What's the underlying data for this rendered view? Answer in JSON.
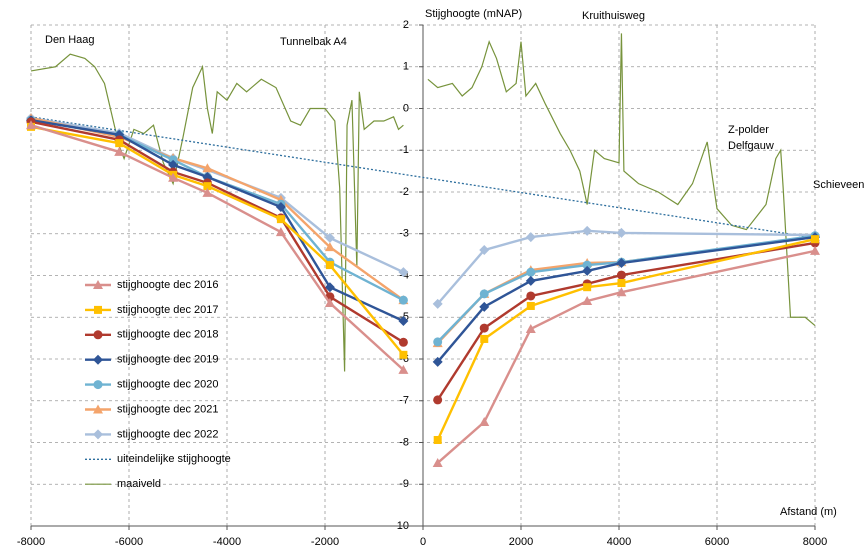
{
  "chart_data": {
    "type": "line",
    "annotations": [
      "Den Haag",
      "Tunnelbak A4",
      "Stijghoogte (mNAP)",
      "Kruithuisweg",
      "Z-polder",
      "Delfgauw",
      "Schieveen",
      "Afstand (m)"
    ],
    "xlim": [
      -8000,
      8000
    ],
    "xticks": [
      -8000,
      -6000,
      -4000,
      -2000,
      0,
      2000,
      4000,
      6000,
      8000
    ],
    "ylim": [
      -10,
      2
    ],
    "yticks": [
      -10,
      -9,
      -8,
      -7,
      -6,
      -5,
      -4,
      -3,
      -2,
      -1,
      0,
      1,
      2
    ],
    "grid": true,
    "legend": "left",
    "series": [
      {
        "name": "stijghoogte dec 2016",
        "color": "#d98f8c",
        "marker": "triangle",
        "x": [
          -8000,
          -6200,
          -5100,
          -4400,
          -2900,
          -1900,
          -400,
          0,
          300,
          1250,
          2200,
          3350,
          4050,
          8000
        ],
        "values": [
          -0.4,
          -1.04,
          -1.66,
          -2.02,
          -2.96,
          -4.66,
          -6.26,
          null,
          -8.49,
          -7.51,
          -5.28,
          -4.61,
          -4.4,
          -3.41
        ]
      },
      {
        "name": "stijghoogte dec 2017",
        "color": "#ffc000",
        "marker": "square",
        "x": [
          -8000,
          -6200,
          -5100,
          -4400,
          -2900,
          -1900,
          -400,
          0,
          300,
          1250,
          2200,
          3350,
          4050,
          8000
        ],
        "values": [
          -0.44,
          -0.83,
          -1.59,
          -1.86,
          -2.65,
          -3.75,
          -5.9,
          null,
          -7.94,
          -5.52,
          -4.73,
          -4.28,
          -4.18,
          -3.13
        ]
      },
      {
        "name": "stijghoogte dec 2018",
        "color": "#b03a2e",
        "marker": "circle",
        "x": [
          -8000,
          -6200,
          -5100,
          -4400,
          -2900,
          -1900,
          -400,
          0,
          300,
          1250,
          2200,
          3350,
          4050,
          8000
        ],
        "values": [
          -0.32,
          -0.75,
          -1.52,
          -1.78,
          -2.62,
          -4.51,
          -5.6,
          null,
          -6.98,
          -5.26,
          -4.49,
          -4.2,
          -3.99,
          -3.22
        ]
      },
      {
        "name": "stijghoogte dec 2019",
        "color": "#2f5597",
        "marker": "diamond",
        "x": [
          -8000,
          -6200,
          -5100,
          -4400,
          -2900,
          -1900,
          -400,
          0,
          300,
          1250,
          2200,
          3350,
          4050,
          8000
        ],
        "values": [
          -0.28,
          -0.63,
          -1.35,
          -1.64,
          -2.36,
          -4.28,
          -5.09,
          null,
          -6.07,
          -4.75,
          -4.13,
          -3.89,
          -3.7,
          -3.08
        ]
      },
      {
        "name": "stijghoogte dec 2020",
        "color": "#6fb3d2",
        "marker": "circle",
        "x": [
          -8000,
          -6200,
          -5100,
          -4400,
          -2900,
          -1900,
          -400,
          0,
          300,
          1250,
          2200,
          3350,
          4050,
          8000
        ],
        "values": [
          -0.28,
          -0.63,
          -1.23,
          -1.64,
          -2.29,
          -3.68,
          -4.59,
          null,
          -5.59,
          -4.44,
          -3.92,
          -3.75,
          -3.68,
          -3.05
        ]
      },
      {
        "name": "stijghoogte dec 2021",
        "color": "#f4a46b",
        "marker": "triangle",
        "x": [
          -8000,
          -6200,
          -5100,
          -4400,
          -2900,
          -1900,
          -400,
          0,
          300,
          1250,
          2200,
          3350,
          4050,
          8000
        ],
        "values": [
          -0.23,
          -0.68,
          -1.19,
          -1.43,
          -2.19,
          -3.32,
          -4.59,
          null,
          -5.62,
          -4.44,
          -3.87,
          -3.7,
          -3.68,
          -3.08
        ]
      },
      {
        "name": "stijghoogte dec 2022",
        "color": "#a9bfdc",
        "marker": "diamond",
        "x": [
          -8000,
          -6200,
          -5100,
          -4400,
          -2900,
          -1900,
          -400,
          0,
          300,
          1250,
          2200,
          3350,
          4050,
          8000
        ],
        "values": [
          -0.23,
          -0.59,
          -1.19,
          -1.47,
          -2.14,
          -3.1,
          -3.92,
          null,
          -4.68,
          -3.39,
          -3.08,
          -2.93,
          -2.98,
          -3.03
        ]
      },
      {
        "name": "uiteindelijke stijghoogte",
        "color": "#2e6f9e",
        "dashed": true,
        "x": [
          -8000,
          8000
        ],
        "values": [
          -0.2,
          -3.1
        ]
      },
      {
        "name": "maaiveld",
        "color": "#77933c",
        "x": [
          -8000,
          -7500,
          -7200,
          -6900,
          -6700,
          -6500,
          -6300,
          -6200,
          -6100,
          -5900,
          -5700,
          -5500,
          -5300,
          -5100,
          -4900,
          -4700,
          -4500,
          -4400,
          -4300,
          -4200,
          -4000,
          -3800,
          -3600,
          -3300,
          -3000,
          -2700,
          -2500,
          -2300,
          -2000,
          -1800,
          -1700,
          -1600,
          -1550,
          -1450,
          -1350,
          -1300,
          -1200,
          -1000,
          -800,
          -600,
          -500,
          -400,
          0,
          100,
          300,
          600,
          800,
          1000,
          1200,
          1350,
          1500,
          1700,
          1900,
          2000,
          2100,
          2300,
          2500,
          2800,
          3000,
          3200,
          3350,
          3500,
          3700,
          4000,
          4050,
          4100,
          4400,
          4800,
          5200,
          5500,
          5800,
          6000,
          6300,
          6600,
          7000,
          7200,
          7300,
          7350,
          7500,
          7800,
          8000
        ],
        "values": [
          0.9,
          1.0,
          1.3,
          1.2,
          1.0,
          0.6,
          -0.4,
          -0.9,
          -1.2,
          -0.5,
          -0.6,
          -0.4,
          -1.3,
          -1.8,
          -0.7,
          0.5,
          1.0,
          0.0,
          -0.6,
          0.4,
          0.2,
          0.6,
          0.4,
          0.7,
          0.5,
          -0.3,
          -0.4,
          0.0,
          0.0,
          -0.3,
          -1.9,
          -6.3,
          -0.4,
          0.2,
          -3.8,
          0.4,
          -0.5,
          -0.3,
          -0.3,
          -0.2,
          -0.5,
          -0.4,
          null,
          0.7,
          0.5,
          0.6,
          0.3,
          0.5,
          1.0,
          1.6,
          1.2,
          0.4,
          0.6,
          1.6,
          0.3,
          0.6,
          0.1,
          -0.6,
          -1.0,
          -1.5,
          -2.3,
          -1.0,
          -1.2,
          -1.3,
          1.8,
          -1.5,
          -1.8,
          -2.0,
          -2.3,
          -1.8,
          -0.8,
          -2.4,
          -2.8,
          -2.9,
          -2.3,
          -1.2,
          -1.0,
          -1.9,
          -5.0,
          -5.0,
          -5.2
        ]
      }
    ]
  }
}
